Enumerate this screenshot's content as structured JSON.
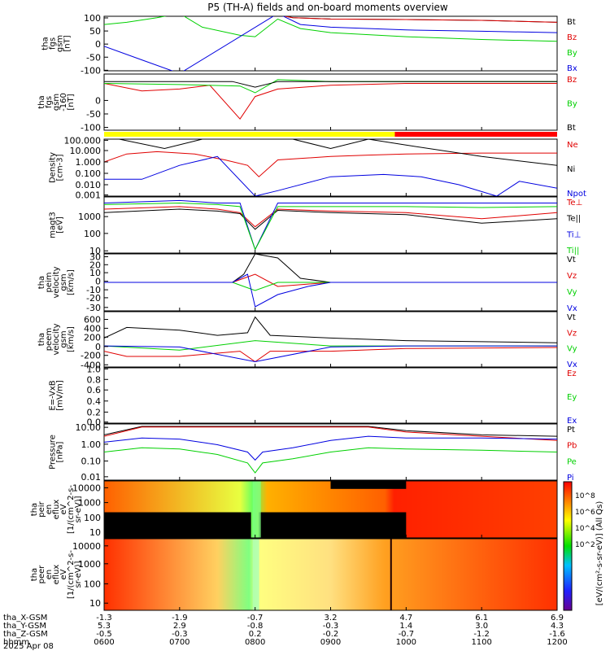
{
  "title": "P5 (TH-A) fields and on-board moments overview",
  "colors": {
    "black": "#000000",
    "red": "#e00000",
    "green": "#00d000",
    "blue": "#0000e0",
    "yellow": "#ffff00",
    "bar_red": "#ff0000"
  },
  "chart_data": [
    {
      "type": "line",
      "panel": "fgs",
      "ylabel": [
        "tha",
        "fgs",
        "gsm",
        "[nT]"
      ],
      "yticks": [
        "100",
        "50",
        "0",
        "-50",
        "-100"
      ],
      "ylim": [
        -100,
        100
      ],
      "series": [
        {
          "name": "Bt",
          "color": "#000000",
          "x": [
            8.0,
            8.2,
            8.5,
            9.0,
            10.0,
            11.0,
            12.0
          ],
          "values": [
            150,
            120,
            95,
            90,
            88,
            85,
            78
          ]
        },
        {
          "name": "Bz",
          "color": "#e00000",
          "x": [
            8.0,
            8.2,
            8.5,
            9.0,
            10.0,
            11.0,
            12.0
          ],
          "values": [
            150,
            120,
            95,
            90,
            88,
            85,
            78
          ]
        },
        {
          "name": "By",
          "color": "#00d000",
          "x": [
            6.0,
            6.3,
            6.7,
            7.0,
            7.3,
            7.8,
            8.0,
            8.3,
            8.6,
            9.0,
            10.0,
            11.0,
            12.0
          ],
          "values": [
            70,
            78,
            95,
            110,
            60,
            30,
            25,
            90,
            55,
            40,
            25,
            15,
            8
          ]
        },
        {
          "name": "Bx",
          "color": "#0000e0",
          "x": [
            6.0,
            6.5,
            7.0,
            8.3,
            8.6,
            9.0,
            10.0,
            11.0,
            12.0
          ],
          "values": [
            -10,
            -60,
            -110,
            120,
            70,
            60,
            50,
            45,
            40
          ]
        }
      ]
    },
    {
      "type": "line",
      "panel": "fgs-zoom",
      "ylabel": [
        "tha",
        "fgs",
        "gsm",
        "-160",
        "[nT]"
      ],
      "yticks": [
        "0",
        "-50",
        "-100"
      ],
      "ylim": [
        -130,
        20
      ],
      "series": [
        {
          "name": "Bz",
          "color": "#e00000",
          "x": [
            6.0,
            6.5,
            7.0,
            7.4,
            7.8,
            8.0,
            8.3,
            9.0,
            10.0,
            11.0,
            12.0
          ],
          "values": [
            -5,
            -25,
            -20,
            -10,
            -100,
            -40,
            -20,
            -10,
            -5,
            -5,
            -5
          ]
        },
        {
          "name": "By",
          "color": "#00d000",
          "x": [
            6.0,
            7.0,
            7.8,
            8.0,
            8.3,
            9.0,
            10.0,
            12.0
          ],
          "values": [
            -5,
            -8,
            -12,
            -30,
            5,
            0,
            0,
            0
          ]
        },
        {
          "name": "Bt",
          "color": "#000000",
          "x": [
            6.0,
            7.0,
            7.7,
            8.0,
            8.3,
            9.0,
            12.0
          ],
          "values": [
            0,
            0,
            0,
            -15,
            0,
            0,
            0
          ]
        }
      ]
    },
    {
      "type": "line",
      "panel": "density",
      "scale": "log",
      "ylabel": [
        "Density",
        "[cm-3]"
      ],
      "yticks": [
        "100.000",
        "10.000",
        "1.000",
        "0.100",
        "0.010",
        "0.001"
      ],
      "ylim": [
        0.001,
        100
      ],
      "series": [
        {
          "name": "Ne",
          "color": "#e00000",
          "x": [
            6.0,
            6.3,
            6.7,
            7.2,
            7.6,
            7.9,
            8.05,
            8.3,
            9.0,
            9.5,
            10.0,
            11.0,
            12.0
          ],
          "values": [
            1.0,
            5.0,
            8.0,
            5.0,
            1.5,
            0.5,
            0.05,
            1.5,
            3.0,
            4.0,
            5.0,
            6.0,
            6.0
          ]
        },
        {
          "name": "Ni",
          "color": "#000000",
          "x": [
            6.2,
            6.8,
            7.3,
            7.5,
            8.5,
            9.0,
            9.5,
            10.0,
            11.0,
            12.0
          ],
          "values": [
            100,
            15,
            100,
            100,
            100,
            15,
            100,
            30,
            3,
            0.5
          ]
        },
        {
          "name": "Npot",
          "color": "#0000e0",
          "x": [
            6.0,
            6.5,
            7.0,
            7.5,
            8.0,
            8.3,
            9.0,
            9.7,
            10.2,
            10.7,
            11.2,
            11.5,
            12.0
          ],
          "values": [
            0.03,
            0.03,
            0.5,
            3,
            0.001,
            0.003,
            0.05,
            0.08,
            0.05,
            0.01,
            0.001,
            0.02,
            0.005
          ]
        }
      ]
    },
    {
      "type": "line",
      "panel": "moments-temperature",
      "scale": "log",
      "ylabel": [
        "magt3",
        "[eV]"
      ],
      "yticks": [
        "1000",
        "100",
        "10"
      ],
      "ylim": [
        10,
        6000
      ],
      "series": [
        {
          "name": "Te⊥",
          "color": "#e00000",
          "x": [
            6.0,
            7.0,
            7.5,
            7.8,
            8.0,
            8.3,
            9.0,
            10.0,
            11.0,
            12.0
          ],
          "values": [
            1500,
            2000,
            1500,
            1000,
            200,
            1500,
            1200,
            1000,
            500,
            1000
          ]
        },
        {
          "name": "Te||",
          "color": "#000000",
          "x": [
            6.0,
            7.0,
            7.5,
            7.8,
            8.0,
            8.3,
            9.0,
            10.0,
            11.0,
            12.0
          ],
          "values": [
            1000,
            1500,
            1200,
            900,
            150,
            1300,
            1000,
            800,
            300,
            500
          ]
        },
        {
          "name": "Ti⊥",
          "color": "#0000e0",
          "x": [
            6.0,
            7.0,
            7.5,
            7.8,
            8.0,
            8.3,
            9.0,
            10.0,
            11.0,
            12.0
          ],
          "values": [
            3000,
            4000,
            3000,
            3000,
            15,
            3000,
            3000,
            3000,
            3000,
            3000
          ]
        },
        {
          "name": "Ti||",
          "color": "#00d000",
          "x": [
            6.0,
            7.0,
            7.5,
            7.8,
            8.0,
            8.3,
            9.0,
            10.0,
            11.0,
            12.0
          ],
          "values": [
            2500,
            3000,
            2500,
            2000,
            15,
            2000,
            2000,
            2000,
            1800,
            2000
          ]
        }
      ]
    },
    {
      "type": "line",
      "panel": "peim-velocity",
      "ylabel": [
        "tha",
        "peim",
        "velocity",
        "gsm",
        "[km/s]"
      ],
      "yticks": [
        "30",
        "20",
        "10",
        "0",
        "-10",
        "-20",
        "-30"
      ],
      "ylim": [
        -35,
        35
      ],
      "series": [
        {
          "name": "Vt",
          "color": "#000000",
          "x": [
            6.0,
            7.7,
            7.85,
            8.0,
            8.3,
            8.6,
            9.0,
            12.0
          ],
          "values": [
            0,
            0,
            10,
            35,
            30,
            5,
            0,
            0
          ]
        },
        {
          "name": "Vz",
          "color": "#e00000",
          "x": [
            6.0,
            7.7,
            7.85,
            8.0,
            8.3,
            9.0,
            12.0
          ],
          "values": [
            0,
            0,
            5,
            10,
            -5,
            0,
            0
          ]
        },
        {
          "name": "Vy",
          "color": "#00d000",
          "x": [
            6.0,
            7.7,
            7.85,
            8.0,
            8.3,
            9.0,
            12.0
          ],
          "values": [
            0,
            0,
            -5,
            -10,
            0,
            0,
            0
          ]
        },
        {
          "name": "Vx",
          "color": "#0000e0",
          "x": [
            6.0,
            7.7,
            7.9,
            8.0,
            8.3,
            8.7,
            9.0,
            12.0
          ],
          "values": [
            0,
            0,
            10,
            -30,
            -15,
            -5,
            0,
            0
          ]
        }
      ]
    },
    {
      "type": "line",
      "panel": "peem-velocity",
      "ylabel": [
        "tha",
        "peem",
        "velocity",
        "gsm",
        "[km/s]"
      ],
      "yticks": [
        "600",
        "400",
        "200",
        "0",
        "-200",
        "-400"
      ],
      "ylim": [
        -400,
        650
      ],
      "series": [
        {
          "name": "Vt",
          "color": "#000000",
          "x": [
            6.0,
            6.3,
            7.0,
            7.5,
            7.9,
            8.0,
            8.2,
            9.0,
            10.0,
            11.0,
            12.0
          ],
          "values": [
            150,
            350,
            300,
            200,
            250,
            550,
            200,
            150,
            100,
            80,
            60
          ]
        },
        {
          "name": "Vz",
          "color": "#e00000",
          "x": [
            6.0,
            6.3,
            7.0,
            7.8,
            8.0,
            8.2,
            9.0,
            10.0,
            12.0
          ],
          "values": [
            -100,
            -200,
            -200,
            -100,
            -300,
            -100,
            -100,
            -50,
            -30
          ]
        },
        {
          "name": "Vy",
          "color": "#00d000",
          "x": [
            6.0,
            7.0,
            8.0,
            9.0,
            10.0,
            12.0
          ],
          "values": [
            0,
            -80,
            100,
            0,
            0,
            0
          ]
        },
        {
          "name": "Vx",
          "color": "#0000e0",
          "x": [
            6.0,
            7.0,
            8.0,
            9.0,
            10.0,
            12.0
          ],
          "values": [
            0,
            -20,
            -300,
            -20,
            0,
            0
          ]
        }
      ]
    },
    {
      "type": "line",
      "panel": "efield",
      "ylabel": [
        "E=-VxB",
        "[mV/m]"
      ],
      "yticks": [
        "1.0",
        "0.8",
        "0.6",
        "0.4",
        "0.2",
        "0.0"
      ],
      "ylim": [
        0,
        1
      ],
      "series": [
        {
          "name": "Ez",
          "color": "#e00000",
          "x": [],
          "values": []
        },
        {
          "name": "Ey",
          "color": "#00d000",
          "x": [],
          "values": []
        },
        {
          "name": "Ex",
          "color": "#0000e0",
          "x": [],
          "values": []
        }
      ]
    },
    {
      "type": "line",
      "panel": "pressure",
      "scale": "log",
      "ylabel": [
        "Pressure",
        "[nPa]"
      ],
      "yticks": [
        "10.00",
        "1.00",
        "0.10",
        "0.01"
      ],
      "ylim": [
        0.003,
        30
      ],
      "series": [
        {
          "name": "Pt",
          "color": "#000000",
          "x": [
            6.0,
            6.5,
            9.3,
            9.5,
            10.0,
            11.0,
            12.0
          ],
          "values": [
            5,
            20,
            20,
            20,
            10,
            5,
            4
          ]
        },
        {
          "name": "Pb",
          "color": "#e00000",
          "x": [
            6.0,
            6.5,
            9.3,
            9.5,
            10.0,
            11.0,
            12.0
          ],
          "values": [
            4,
            18,
            18,
            18,
            8,
            4,
            2
          ]
        },
        {
          "name": "Pe",
          "color": "#00d000",
          "x": [
            6.0,
            6.5,
            7.0,
            7.5,
            7.9,
            8.0,
            8.1,
            8.5,
            9.0,
            9.5,
            10.0,
            11.0,
            12.0
          ],
          "values": [
            0.3,
            0.6,
            0.5,
            0.2,
            0.05,
            0.01,
            0.05,
            0.1,
            0.3,
            0.6,
            0.5,
            0.4,
            0.3
          ]
        },
        {
          "name": "Pi",
          "color": "#0000e0",
          "x": [
            6.0,
            6.5,
            7.0,
            7.5,
            7.9,
            8.0,
            8.1,
            8.5,
            9.0,
            9.5,
            10.0,
            11.0,
            12.0
          ],
          "values": [
            1.5,
            3,
            2.5,
            1,
            0.3,
            0.08,
            0.3,
            0.6,
            2,
            4,
            3,
            3,
            2.5
          ]
        }
      ]
    },
    {
      "type": "heatmap",
      "panel": "peir-spectrogram",
      "ylabel": [
        "tha",
        "peir",
        "en",
        "eflux",
        "eV",
        "[1/(cm^2-s-",
        "sr-eV)]"
      ],
      "yticks": [
        "10000",
        "1000",
        "100",
        "10"
      ],
      "ylim": [
        5,
        30000
      ]
    },
    {
      "type": "heatmap",
      "panel": "peer-spectrogram",
      "ylabel": [
        "tha",
        "peer",
        "en",
        "eflux",
        "eV",
        "[1/(cm^2-s-",
        "sr-eV)]"
      ],
      "yticks": [
        "10000",
        "1000",
        "100",
        "10"
      ],
      "ylim": [
        5,
        30000
      ]
    }
  ],
  "colorbar": {
    "ticks": [
      "10^8",
      "10^6",
      "10^4",
      "10^2"
    ],
    "label": "[eV/(cm²-s-sr-eV)] (All Qs)"
  },
  "xaxis": {
    "rows": [
      {
        "label": "tha_X-GSM",
        "values": [
          "-1.3",
          "-1.9",
          "-0.7",
          "3.2",
          "4.7",
          "6.1",
          "6.9"
        ]
      },
      {
        "label": "tha_Y-GSM",
        "values": [
          "5.3",
          "2.9",
          "-0.8",
          "-0.3",
          "1.4",
          "3.0",
          "4.3"
        ]
      },
      {
        "label": "tha_Z-GSM",
        "values": [
          "-0.5",
          "-0.3",
          "0.2",
          "-0.2",
          "-0.7",
          "-1.2",
          "-1.6"
        ]
      },
      {
        "label": "hhmm",
        "values": [
          "0600",
          "0700",
          "0800",
          "0900",
          "1000",
          "1100",
          "1200"
        ]
      }
    ],
    "date": "2025 Apr 08",
    "ticks_hours": [
      6,
      7,
      8,
      9,
      10,
      11,
      12
    ]
  }
}
